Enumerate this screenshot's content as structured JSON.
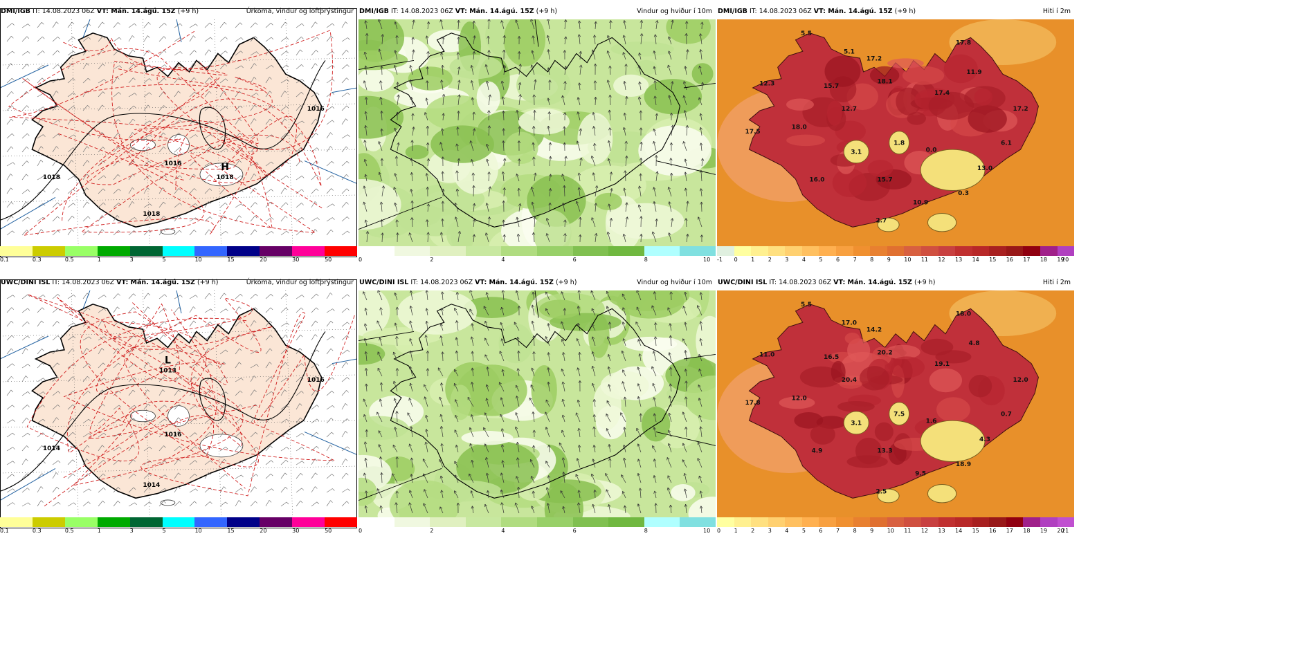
{
  "rows": [
    {
      "panels": [
        {
          "model": "DMI/IGB",
          "it": "IT: 14.08.2023 06Z",
          "vt": "VT: Mán. 14.ágú. 15Z",
          "offset": "(+9 h)",
          "title": "Úrkoma, vindur og loftþrýstingur",
          "type": "precip",
          "pressure_labels": [
            {
              "t": "1018"
            },
            {
              "t": "1016"
            },
            {
              "t": "1016"
            },
            {
              "t": "1018"
            }
          ],
          "high_label": "H",
          "center_value": "1018",
          "scale_colors": [
            "#ffff99",
            "#cccc00",
            "#99ff66",
            "#00aa00",
            "#006633",
            "#00ffff",
            "#3366ff",
            "#000088",
            "#660066",
            "#ff0099",
            "#ff0000"
          ],
          "scale_ticks": [
            "0.1",
            "0.3",
            "0.5",
            "1",
            "3",
            "5",
            "10",
            "15",
            "20",
            "30",
            "50"
          ]
        },
        {
          "model": "DMI/IGB",
          "it": "IT: 14.08.2023 06Z",
          "vt": "VT: Mán. 14.ágú. 15Z",
          "offset": "(+9 h)",
          "title": "Vindur og hviður í 10m",
          "type": "wind",
          "scale_colors": [
            "#ffffff",
            "#f0f8e0",
            "#e0f0c0",
            "#c8e8a0",
            "#b0dc80",
            "#98d068",
            "#80c050",
            "#70b840",
            "#b0ffff",
            "#80e0e0"
          ],
          "scale_ticks": [
            "0",
            "2",
            "4",
            "6",
            "8",
            "10"
          ]
        },
        {
          "model": "DMI/IGB",
          "it": "IT: 14.08.2023 06Z",
          "vt": "VT: Mán. 14.ágú. 15Z",
          "offset": "(+9 h)",
          "title": "Hiti í 2m",
          "type": "temp",
          "temp_labels": [
            "5.5",
            "5.1",
            "17.2",
            "17.8",
            "12.3",
            "15.7",
            "18.1",
            "11.9",
            "17.4",
            "12.7",
            "17.2",
            "18.0",
            "17.5",
            "1.8",
            "3.1",
            "0.0",
            "6.1",
            "16.0",
            "15.7",
            "13.0",
            "0.3",
            "10.9",
            "2.7"
          ],
          "scale_colors": [
            "#e0f0e0",
            "#ffffa0",
            "#fff090",
            "#ffe080",
            "#ffd070",
            "#ffc060",
            "#ffb050",
            "#f8a040",
            "#f09030",
            "#e88030",
            "#e07030",
            "#d86040",
            "#d05040",
            "#c84040",
            "#c03030",
            "#b82828",
            "#a82020",
            "#981818",
            "#900010",
            "#a0208a",
            "#b040c0"
          ],
          "scale_ticks": [
            "-1",
            "0",
            "1",
            "2",
            "3",
            "4",
            "5",
            "6",
            "7",
            "8",
            "9",
            "10",
            "11",
            "12",
            "13",
            "14",
            "15",
            "16",
            "17",
            "18",
            "19",
            "20"
          ]
        }
      ]
    },
    {
      "panels": [
        {
          "model": "UWC/DINI ISL",
          "it": "IT: 14.08.2023 06Z",
          "vt": "VT: Mán. 14.ágú. 15Z",
          "offset": "(+9 h)",
          "title": "Úrkoma, vindur og loftþrýstingur",
          "type": "precip",
          "pressure_labels": [
            {
              "t": "1014"
            },
            {
              "t": "1016"
            },
            {
              "t": "1016"
            },
            {
              "t": "1014"
            }
          ],
          "high_label": "L",
          "center_value": "1013",
          "scale_colors": [
            "#ffff99",
            "#cccc00",
            "#99ff66",
            "#00aa00",
            "#006633",
            "#00ffff",
            "#3366ff",
            "#000088",
            "#660066",
            "#ff0099",
            "#ff0000"
          ],
          "scale_ticks": [
            "0.1",
            "0.3",
            "0.5",
            "1",
            "3",
            "5",
            "10",
            "15",
            "20",
            "30",
            "50"
          ]
        },
        {
          "model": "UWC/DINI ISL",
          "it": "IT: 14.08.2023 06Z",
          "vt": "VT: Mán. 14.ágú. 15Z",
          "offset": "(+9 h)",
          "title": "Vindur og hviður í 10m",
          "type": "wind",
          "scale_colors": [
            "#ffffff",
            "#f0f8e0",
            "#e0f0c0",
            "#c8e8a0",
            "#b0dc80",
            "#98d068",
            "#80c050",
            "#70b840",
            "#b0ffff",
            "#80e0e0"
          ],
          "scale_ticks": [
            "0",
            "2",
            "4",
            "6",
            "8",
            "10"
          ]
        },
        {
          "model": "UWC/DINI ISL",
          "it": "IT: 14.08.2023 06Z",
          "vt": "VT: Mán. 14.ágú. 15Z",
          "offset": "(+9 h)",
          "title": "Hiti í 2m",
          "type": "temp",
          "temp_labels": [
            "5.5",
            "17.0",
            "14.2",
            "18.0",
            "11.0",
            "16.5",
            "20.2",
            "4.8",
            "19.1",
            "20.4",
            "12.0",
            "12.0",
            "17.8",
            "7.5",
            "3.1",
            "1.6",
            "0.7",
            "4.9",
            "13.3",
            "4.3",
            "18.9",
            "9.5",
            "2.5"
          ],
          "scale_colors": [
            "#ffffa0",
            "#fff090",
            "#ffe080",
            "#ffd070",
            "#ffc060",
            "#ffb050",
            "#f8a040",
            "#f09030",
            "#e88030",
            "#e07030",
            "#d86040",
            "#d05040",
            "#c84040",
            "#c03030",
            "#b82828",
            "#a82020",
            "#981818",
            "#900010",
            "#a0208a",
            "#b040c0",
            "#c050d0"
          ],
          "scale_ticks": [
            "0",
            "1",
            "2",
            "3",
            "4",
            "5",
            "6",
            "7",
            "8",
            "9",
            "10",
            "11",
            "12",
            "13",
            "14",
            "15",
            "16",
            "17",
            "18",
            "19",
            "20",
            "21"
          ]
        }
      ]
    }
  ]
}
